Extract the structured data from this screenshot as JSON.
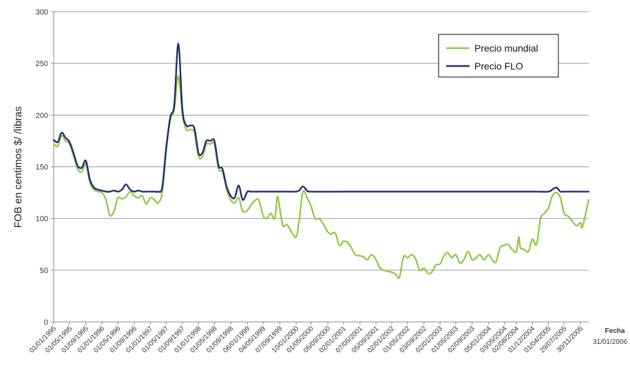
{
  "chart_data": {
    "type": "line",
    "title": "",
    "xlabel": "Fecha",
    "xlabel_date": "31/01/2006",
    "ylabel": "FOB en centimos $/ /libras",
    "ylim": [
      0,
      300
    ],
    "yticks": [
      0,
      50,
      100,
      150,
      200,
      250,
      300
    ],
    "xlim": [
      "1995-01-01",
      "2006-01-31"
    ],
    "grid": "horizontal",
    "legend_position": "top-right",
    "xtick_labels": [
      "01/01/1995",
      "01/05/1995",
      "01/09/1995",
      "01/01/1996",
      "01/05/1996",
      "01/09/1996",
      "01/01/1997",
      "01/05/1997",
      "01/09/1997",
      "01/01/1998",
      "01/05/1998",
      "01/09/1998",
      "06/01/1999",
      "04/05/1999",
      "07/09/1999",
      "10/01/2000",
      "01/05/2000",
      "05/09/2000",
      "02/01/2001",
      "07/05/2001",
      "05/09/2001",
      "02/01/2002",
      "01/05/2002",
      "03/09/2002",
      "02/01/2003",
      "01/05/2003",
      "02/09/2003",
      "05/01/2004",
      "03/05/2004",
      "02/08/2004",
      "01/12/2004",
      "01/04/2005",
      "29/07/2005",
      "30/11/2005"
    ],
    "xtick_dates": [
      "1995-01-01",
      "1995-05-01",
      "1995-09-01",
      "1996-01-01",
      "1996-05-01",
      "1996-09-01",
      "1997-01-01",
      "1997-05-01",
      "1997-09-01",
      "1998-01-01",
      "1998-05-01",
      "1998-09-01",
      "1999-01-06",
      "1999-05-04",
      "1999-09-07",
      "2000-01-10",
      "2000-05-01",
      "2000-09-05",
      "2001-01-02",
      "2001-05-07",
      "2001-09-05",
      "2002-01-02",
      "2002-05-01",
      "2002-09-03",
      "2003-01-02",
      "2003-05-01",
      "2003-09-02",
      "2004-01-05",
      "2004-05-03",
      "2004-08-02",
      "2004-12-01",
      "2005-04-01",
      "2005-07-29",
      "2005-11-30"
    ],
    "series": [
      {
        "name": "Precio mundial",
        "color": "#8dc63f",
        "points": [
          [
            "1995-01-01",
            172
          ],
          [
            "1995-02-01",
            170
          ],
          [
            "1995-03-01",
            180
          ],
          [
            "1995-04-01",
            175
          ],
          [
            "1995-05-01",
            172
          ],
          [
            "1995-06-01",
            160
          ],
          [
            "1995-07-01",
            148
          ],
          [
            "1995-08-01",
            145
          ],
          [
            "1995-09-01",
            153
          ],
          [
            "1995-10-01",
            135
          ],
          [
            "1995-11-01",
            128
          ],
          [
            "1995-12-01",
            126
          ],
          [
            "1996-01-01",
            125
          ],
          [
            "1996-02-01",
            118
          ],
          [
            "1996-03-01",
            103
          ],
          [
            "1996-04-01",
            107
          ],
          [
            "1996-05-01",
            120
          ],
          [
            "1996-06-01",
            119
          ],
          [
            "1996-07-01",
            121
          ],
          [
            "1996-08-01",
            126
          ],
          [
            "1996-09-01",
            122
          ],
          [
            "1996-10-01",
            120
          ],
          [
            "1996-11-01",
            122
          ],
          [
            "1996-12-01",
            114
          ],
          [
            "1997-01-01",
            120
          ],
          [
            "1997-02-01",
            118
          ],
          [
            "1997-03-01",
            115
          ],
          [
            "1997-04-01",
            125
          ],
          [
            "1997-05-01",
            165
          ],
          [
            "1997-06-01",
            195
          ],
          [
            "1997-07-01",
            205
          ],
          [
            "1997-08-01",
            238
          ],
          [
            "1997-09-01",
            200
          ],
          [
            "1997-10-01",
            186
          ],
          [
            "1997-11-01",
            186
          ],
          [
            "1997-12-01",
            183
          ],
          [
            "1998-01-01",
            160
          ],
          [
            "1998-02-01",
            160
          ],
          [
            "1998-03-01",
            172
          ],
          [
            "1998-04-01",
            172
          ],
          [
            "1998-05-01",
            172
          ],
          [
            "1998-06-01",
            148
          ],
          [
            "1998-07-01",
            145
          ],
          [
            "1998-08-01",
            128
          ],
          [
            "1998-09-01",
            118
          ],
          [
            "1998-10-01",
            115
          ],
          [
            "1998-11-01",
            120
          ],
          [
            "1998-12-01",
            107
          ],
          [
            "1999-01-06",
            108
          ],
          [
            "1999-02-01",
            113
          ],
          [
            "1999-03-01",
            117
          ],
          [
            "1999-04-01",
            118
          ],
          [
            "1999-05-04",
            103
          ],
          [
            "1999-06-01",
            100
          ],
          [
            "1999-07-01",
            105
          ],
          [
            "1999-08-01",
            100
          ],
          [
            "1999-08-20",
            121
          ],
          [
            "1999-09-07",
            110
          ],
          [
            "1999-10-01",
            93
          ],
          [
            "1999-11-01",
            94
          ],
          [
            "1999-12-01",
            88
          ],
          [
            "2000-01-10",
            82
          ],
          [
            "2000-02-01",
            98
          ],
          [
            "2000-03-01",
            126
          ],
          [
            "2000-04-01",
            120
          ],
          [
            "2000-05-01",
            112
          ],
          [
            "2000-06-01",
            100
          ],
          [
            "2000-07-01",
            100
          ],
          [
            "2000-08-01",
            95
          ],
          [
            "2000-09-05",
            87
          ],
          [
            "2000-10-01",
            85
          ],
          [
            "2000-11-01",
            86
          ],
          [
            "2000-12-01",
            74
          ],
          [
            "2001-01-02",
            78
          ],
          [
            "2001-02-01",
            77
          ],
          [
            "2001-03-01",
            72
          ],
          [
            "2001-04-01",
            65
          ],
          [
            "2001-05-07",
            64
          ],
          [
            "2001-06-01",
            63
          ],
          [
            "2001-07-01",
            60
          ],
          [
            "2001-08-01",
            65
          ],
          [
            "2001-09-05",
            60
          ],
          [
            "2001-10-01",
            53
          ],
          [
            "2001-11-01",
            50
          ],
          [
            "2001-12-01",
            49
          ],
          [
            "2002-01-02",
            48
          ],
          [
            "2002-02-01",
            46
          ],
          [
            "2002-03-01",
            43
          ],
          [
            "2002-04-01",
            63
          ],
          [
            "2002-05-01",
            62
          ],
          [
            "2002-06-01",
            65
          ],
          [
            "2002-07-01",
            61
          ],
          [
            "2002-08-01",
            50
          ],
          [
            "2002-09-03",
            52
          ],
          [
            "2002-10-01",
            47
          ],
          [
            "2002-11-01",
            48
          ],
          [
            "2002-12-01",
            55
          ],
          [
            "2003-01-02",
            56
          ],
          [
            "2003-02-01",
            64
          ],
          [
            "2003-03-01",
            67
          ],
          [
            "2003-04-01",
            62
          ],
          [
            "2003-05-01",
            65
          ],
          [
            "2003-06-01",
            57
          ],
          [
            "2003-07-01",
            60
          ],
          [
            "2003-08-01",
            68
          ],
          [
            "2003-09-02",
            60
          ],
          [
            "2003-10-01",
            62
          ],
          [
            "2003-11-01",
            65
          ],
          [
            "2003-12-01",
            60
          ],
          [
            "2004-01-05",
            65
          ],
          [
            "2004-02-01",
            60
          ],
          [
            "2004-03-01",
            58
          ],
          [
            "2004-04-01",
            72
          ],
          [
            "2004-05-03",
            74
          ],
          [
            "2004-06-01",
            75
          ],
          [
            "2004-07-01",
            70
          ],
          [
            "2004-08-02",
            68
          ],
          [
            "2004-08-20",
            82
          ],
          [
            "2004-09-01",
            72
          ],
          [
            "2004-10-01",
            70
          ],
          [
            "2004-11-01",
            68
          ],
          [
            "2004-12-01",
            80
          ],
          [
            "2005-01-01",
            75
          ],
          [
            "2005-02-01",
            100
          ],
          [
            "2005-03-01",
            105
          ],
          [
            "2005-04-01",
            110
          ],
          [
            "2005-05-01",
            122
          ],
          [
            "2005-06-01",
            125
          ],
          [
            "2005-07-01",
            120
          ],
          [
            "2005-07-29",
            105
          ],
          [
            "2005-09-01",
            102
          ],
          [
            "2005-10-01",
            97
          ],
          [
            "2005-11-01",
            93
          ],
          [
            "2005-11-30",
            96
          ],
          [
            "2005-12-15",
            92
          ],
          [
            "2006-01-31",
            118
          ]
        ]
      },
      {
        "name": "Precio FLO",
        "color": "#1f2f6b",
        "points": [
          [
            "1995-01-01",
            176
          ],
          [
            "1995-02-01",
            174
          ],
          [
            "1995-03-01",
            183
          ],
          [
            "1995-04-01",
            178
          ],
          [
            "1995-05-01",
            174
          ],
          [
            "1995-06-01",
            163
          ],
          [
            "1995-07-01",
            151
          ],
          [
            "1995-08-01",
            149
          ],
          [
            "1995-09-01",
            156
          ],
          [
            "1995-10-01",
            138
          ],
          [
            "1995-11-01",
            130
          ],
          [
            "1995-12-01",
            128
          ],
          [
            "1996-01-01",
            127
          ],
          [
            "1996-02-01",
            126
          ],
          [
            "1996-03-01",
            126
          ],
          [
            "1996-04-01",
            127
          ],
          [
            "1996-05-01",
            126
          ],
          [
            "1996-06-01",
            128
          ],
          [
            "1996-07-01",
            133
          ],
          [
            "1996-08-01",
            128
          ],
          [
            "1996-09-01",
            126
          ],
          [
            "1996-10-01",
            127
          ],
          [
            "1996-11-01",
            126
          ],
          [
            "1996-12-01",
            126
          ],
          [
            "1997-01-01",
            126
          ],
          [
            "1997-02-01",
            126
          ],
          [
            "1997-03-01",
            126
          ],
          [
            "1997-04-01",
            130
          ],
          [
            "1997-05-01",
            168
          ],
          [
            "1997-06-01",
            198
          ],
          [
            "1997-07-01",
            210
          ],
          [
            "1997-08-01",
            269
          ],
          [
            "1997-09-01",
            205
          ],
          [
            "1997-10-01",
            190
          ],
          [
            "1997-11-01",
            190
          ],
          [
            "1997-12-01",
            187
          ],
          [
            "1998-01-01",
            163
          ],
          [
            "1998-02-01",
            164
          ],
          [
            "1998-03-01",
            175
          ],
          [
            "1998-04-01",
            175
          ],
          [
            "1998-05-01",
            175
          ],
          [
            "1998-06-01",
            151
          ],
          [
            "1998-07-01",
            148
          ],
          [
            "1998-08-01",
            131
          ],
          [
            "1998-09-01",
            122
          ],
          [
            "1998-10-01",
            120
          ],
          [
            "1998-11-01",
            132
          ],
          [
            "1998-12-01",
            118
          ],
          [
            "1999-01-06",
            126
          ],
          [
            "1999-02-01",
            126
          ],
          [
            "1999-06-01",
            126
          ],
          [
            "1999-12-01",
            126
          ],
          [
            "2000-01-10",
            126
          ],
          [
            "2000-02-01",
            127
          ],
          [
            "2000-03-01",
            131
          ],
          [
            "2000-04-01",
            127
          ],
          [
            "2000-05-01",
            126
          ],
          [
            "2001-01-02",
            126
          ],
          [
            "2002-01-02",
            126
          ],
          [
            "2003-01-02",
            126
          ],
          [
            "2004-01-05",
            126
          ],
          [
            "2005-01-01",
            126
          ],
          [
            "2005-04-01",
            126
          ],
          [
            "2005-05-01",
            128
          ],
          [
            "2005-06-01",
            130
          ],
          [
            "2005-07-01",
            126
          ],
          [
            "2005-07-29",
            126
          ],
          [
            "2006-01-31",
            126
          ]
        ]
      }
    ]
  }
}
